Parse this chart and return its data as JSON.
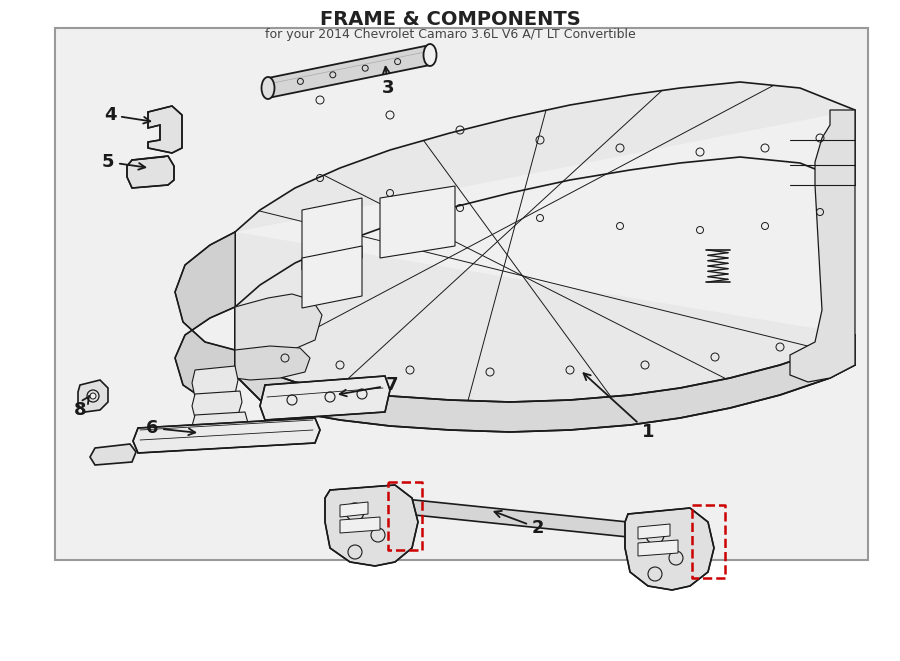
{
  "title": "FRAME & COMPONENTS",
  "subtitle": "for your 2014 Chevrolet Camaro 3.6L V6 A/T LT Convertible",
  "bg_color": "#ffffff",
  "panel_bg": "#f0f0f0",
  "line_color": "#1a1a1a",
  "red_color": "#cc0000",
  "label_color": "#1a1a1a"
}
